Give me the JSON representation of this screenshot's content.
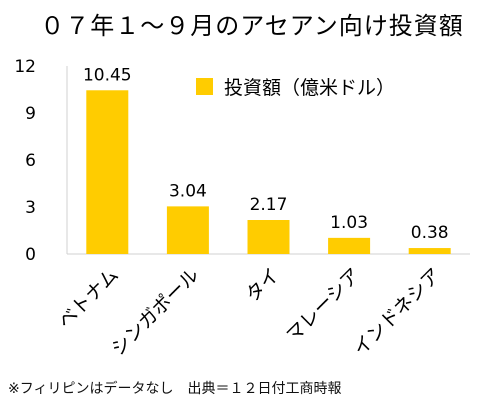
{
  "chart_data": {
    "type": "bar",
    "title": "０７年１〜９月のアセアン向け投資額",
    "categories": [
      "ベトナム",
      "シンガポール",
      "タイ",
      "マレーシア",
      "インドネシア"
    ],
    "series": [
      {
        "name": "投資額（億米ドル）",
        "values": [
          10.45,
          3.04,
          2.17,
          1.03,
          0.38
        ]
      }
    ],
    "value_labels": [
      "10.45",
      "3.04",
      "2.17",
      "1.03",
      "0.38"
    ],
    "yticks": [
      0,
      3,
      6,
      9,
      12
    ],
    "ylim": [
      0,
      12
    ],
    "xlabel": "",
    "ylabel": "",
    "grid": false,
    "legend_position": "top-right",
    "bar_color": "#ffcc00"
  },
  "footnote": "※フィリピンはデータなし　出典＝１２日付工商時報"
}
